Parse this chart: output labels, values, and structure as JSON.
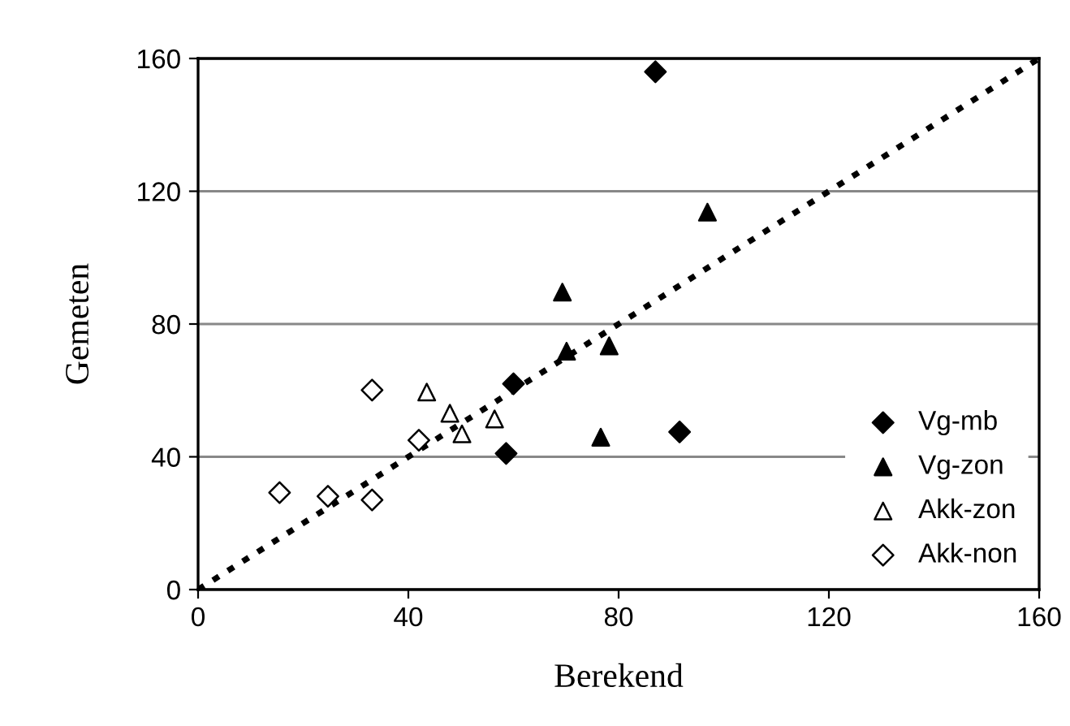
{
  "chart_data": {
    "type": "scatter",
    "xlabel": "Berekend",
    "ylabel": "Gemeten",
    "xlim": [
      0,
      160
    ],
    "ylim": [
      0,
      160
    ],
    "xticks": [
      0,
      40,
      80,
      120,
      160
    ],
    "yticks": [
      0,
      40,
      80,
      120,
      160
    ],
    "grid": "y",
    "legend": "bottom right",
    "series": [
      {
        "name": "Vg-mb",
        "color": "#000000",
        "marker": "diamond",
        "x": [
          87,
          60,
          58.6,
          91.6
        ],
        "values": [
          156,
          62,
          41,
          47.5
        ]
      },
      {
        "name": "Vg-zon",
        "color": "#000000",
        "marker": "triangle",
        "x": [
          96.9,
          69.3,
          70.1,
          78.2,
          76.6
        ],
        "values": [
          113.7,
          89.6,
          71.8,
          73.4,
          45.9
        ]
      },
      {
        "name": "Akk-zon",
        "color": "#ffffff",
        "marker": "triangle",
        "x": [
          43.5,
          47.9,
          50.2,
          56.4
        ],
        "values": [
          59.5,
          53.1,
          46.9,
          51.4
        ]
      },
      {
        "name": "Akk-non",
        "color": "#ffffff",
        "marker": "diamond",
        "x": [
          33.1,
          42,
          15.5,
          24.7,
          33.1
        ],
        "values": [
          60.1,
          45,
          29.2,
          28.1,
          27
        ]
      },
      {
        "type": "line",
        "color": "#000000",
        "line_style": "dotted",
        "marker": "none",
        "x": [
          0,
          160
        ],
        "values": [
          0,
          160
        ]
      }
    ]
  }
}
